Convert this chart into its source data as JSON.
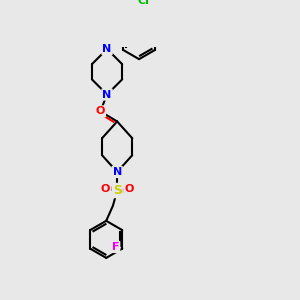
{
  "bg_color": "#e8e8e8",
  "bond_color": "#000000",
  "bond_width": 1.5,
  "atom_colors": {
    "N": "#0000ff",
    "O": "#ff0000",
    "Cl": "#00bb00",
    "F": "#ee00ee",
    "S": "#cccc00",
    "C": "#000000"
  },
  "font_size": 8,
  "font_size_small": 7
}
